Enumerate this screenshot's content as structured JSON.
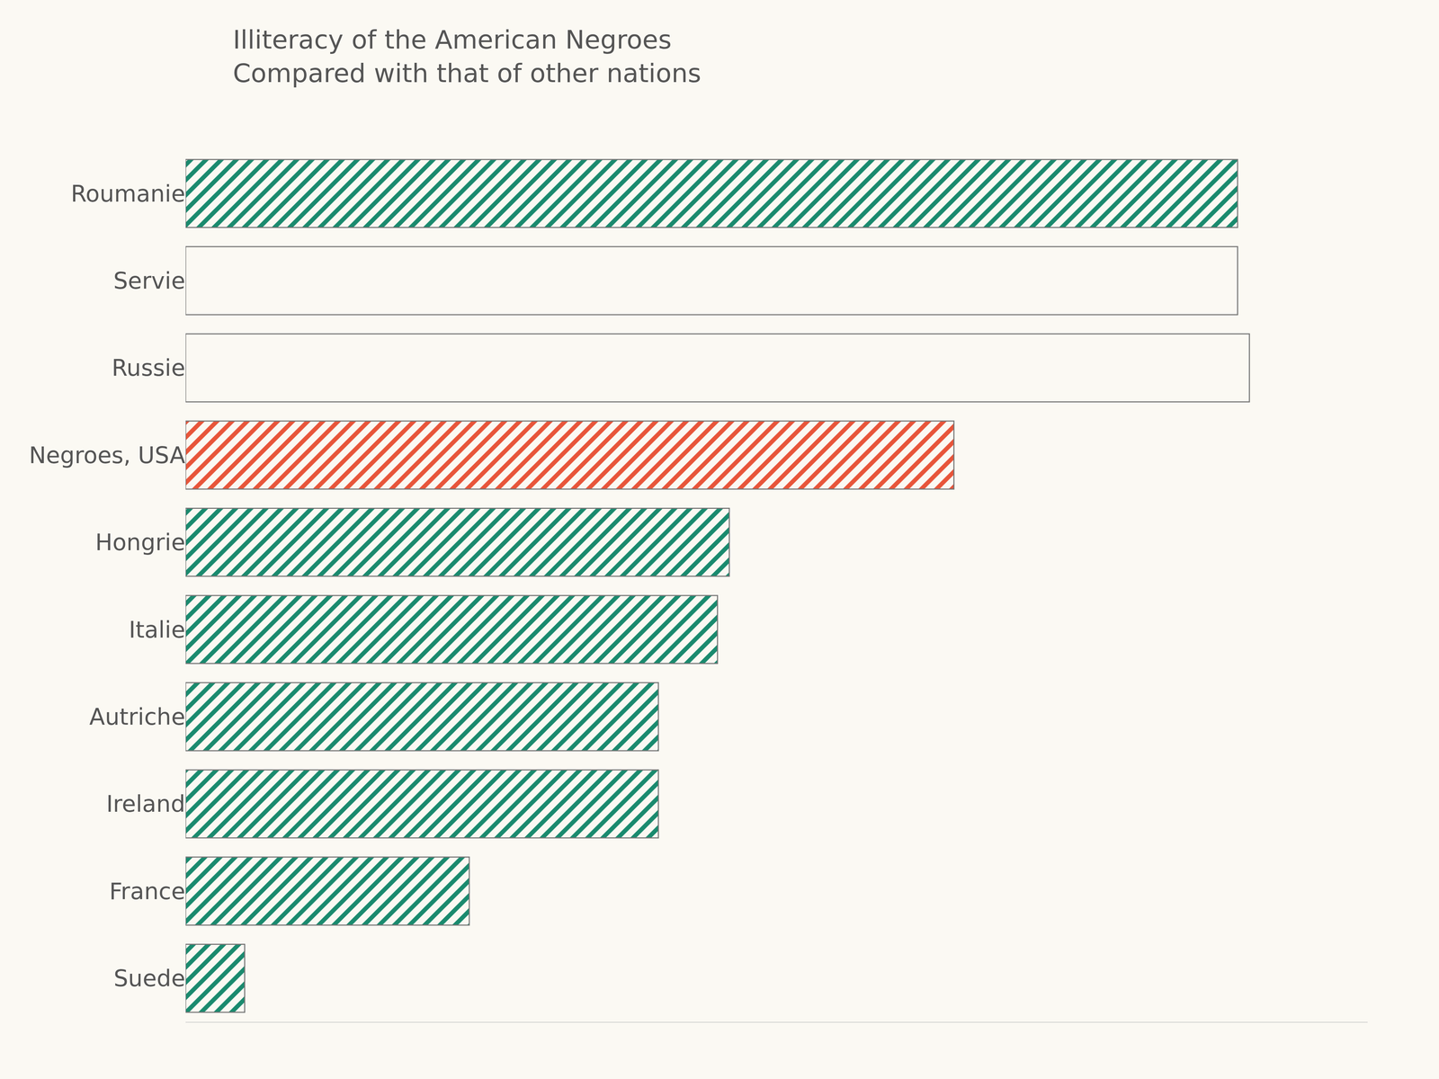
{
  "chart_data": {
    "type": "bar",
    "orientation": "horizontal",
    "title": "Illiteracy of the American Negroes",
    "subtitle": "Compared with that of other nations",
    "categories": [
      "Roumanie",
      "Servie",
      "Russie",
      "Negroes, USA",
      "Hongrie",
      "Italie",
      "Autriche",
      "Ireland",
      "France",
      "Suede"
    ],
    "values": [
      89,
      89,
      90,
      65,
      46,
      45,
      40,
      40,
      24,
      5
    ],
    "colors": [
      "#1a8a6e",
      "#fbf9f3",
      "#fbf9f3",
      "#e8553a",
      "#1a8a6e",
      "#1a8a6e",
      "#1a8a6e",
      "#1a8a6e",
      "#1a8a6e",
      "#1a8a6e"
    ],
    "xlim": [
      0,
      100
    ],
    "tick_labels": "y",
    "grid": false
  }
}
